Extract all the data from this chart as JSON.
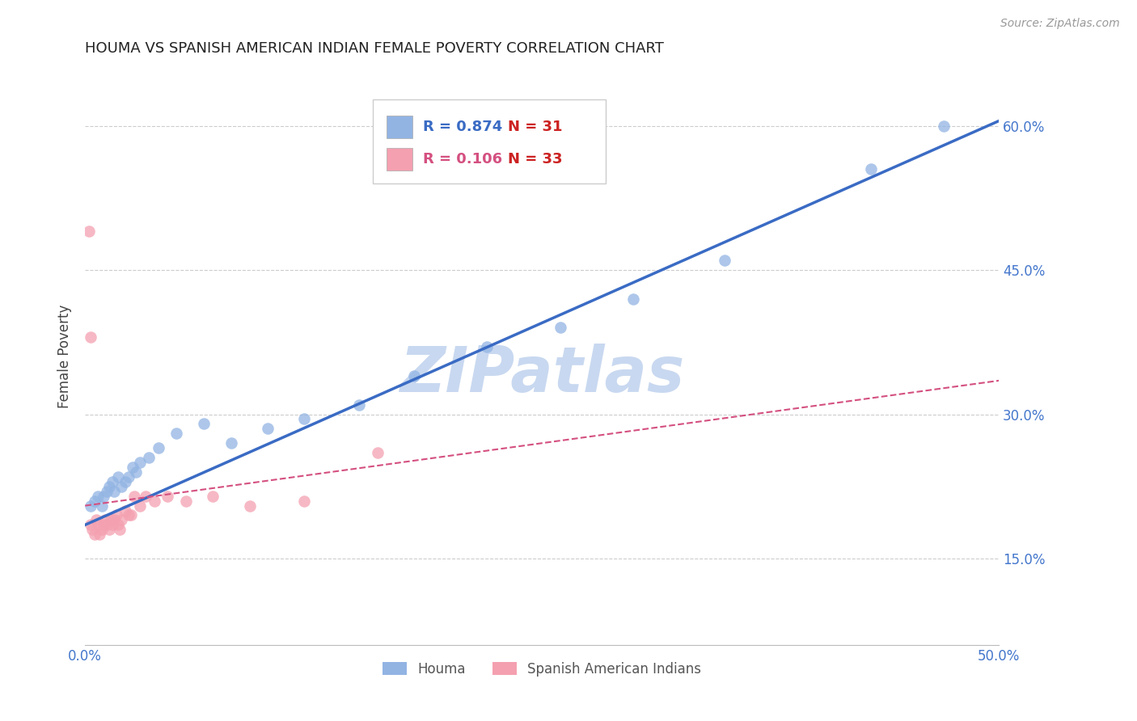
{
  "title": "HOUMA VS SPANISH AMERICAN INDIAN FEMALE POVERTY CORRELATION CHART",
  "source": "Source: ZipAtlas.com",
  "ylabel": "Female Poverty",
  "xlim": [
    0.0,
    0.5
  ],
  "ylim": [
    0.06,
    0.66
  ],
  "yticks": [
    0.15,
    0.3,
    0.45,
    0.6
  ],
  "ytick_labels": [
    "15.0%",
    "30.0%",
    "45.0%",
    "60.0%"
  ],
  "xticks": [
    0.0,
    0.1,
    0.2,
    0.3,
    0.4,
    0.5
  ],
  "xtick_labels": [
    "0.0%",
    "",
    "",
    "",
    "",
    "50.0%"
  ],
  "houma_color": "#92b4e3",
  "sai_color": "#f4a0b0",
  "houma_line_color": "#3a6bc4",
  "sai_line_color": "#d45080",
  "bg_color": "#ffffff",
  "grid_color": "#cccccc",
  "tick_color": "#4477cc",
  "title_color": "#222222",
  "source_color": "#999999",
  "watermark": "ZIPatlas",
  "watermark_color": "#c8d8f0",
  "houma_x": [
    0.003,
    0.005,
    0.007,
    0.009,
    0.01,
    0.012,
    0.013,
    0.015,
    0.016,
    0.018,
    0.02,
    0.022,
    0.024,
    0.026,
    0.028,
    0.03,
    0.035,
    0.04,
    0.05,
    0.065,
    0.08,
    0.1,
    0.12,
    0.15,
    0.18,
    0.22,
    0.26,
    0.3,
    0.35,
    0.43,
    0.47
  ],
  "houma_y": [
    0.205,
    0.21,
    0.215,
    0.205,
    0.215,
    0.22,
    0.225,
    0.23,
    0.22,
    0.235,
    0.225,
    0.23,
    0.235,
    0.245,
    0.24,
    0.25,
    0.255,
    0.265,
    0.28,
    0.29,
    0.27,
    0.285,
    0.295,
    0.31,
    0.34,
    0.37,
    0.39,
    0.42,
    0.46,
    0.555,
    0.6
  ],
  "sai_x": [
    0.003,
    0.004,
    0.005,
    0.006,
    0.007,
    0.008,
    0.009,
    0.01,
    0.011,
    0.012,
    0.013,
    0.014,
    0.015,
    0.016,
    0.017,
    0.018,
    0.019,
    0.02,
    0.022,
    0.024,
    0.025,
    0.027,
    0.03,
    0.033,
    0.038,
    0.045,
    0.055,
    0.07,
    0.09,
    0.12,
    0.003,
    0.002,
    0.16
  ],
  "sai_y": [
    0.185,
    0.18,
    0.175,
    0.19,
    0.185,
    0.175,
    0.18,
    0.185,
    0.19,
    0.185,
    0.18,
    0.19,
    0.185,
    0.19,
    0.195,
    0.185,
    0.18,
    0.19,
    0.2,
    0.195,
    0.195,
    0.215,
    0.205,
    0.215,
    0.21,
    0.215,
    0.21,
    0.215,
    0.205,
    0.21,
    0.38,
    0.49,
    0.26
  ]
}
